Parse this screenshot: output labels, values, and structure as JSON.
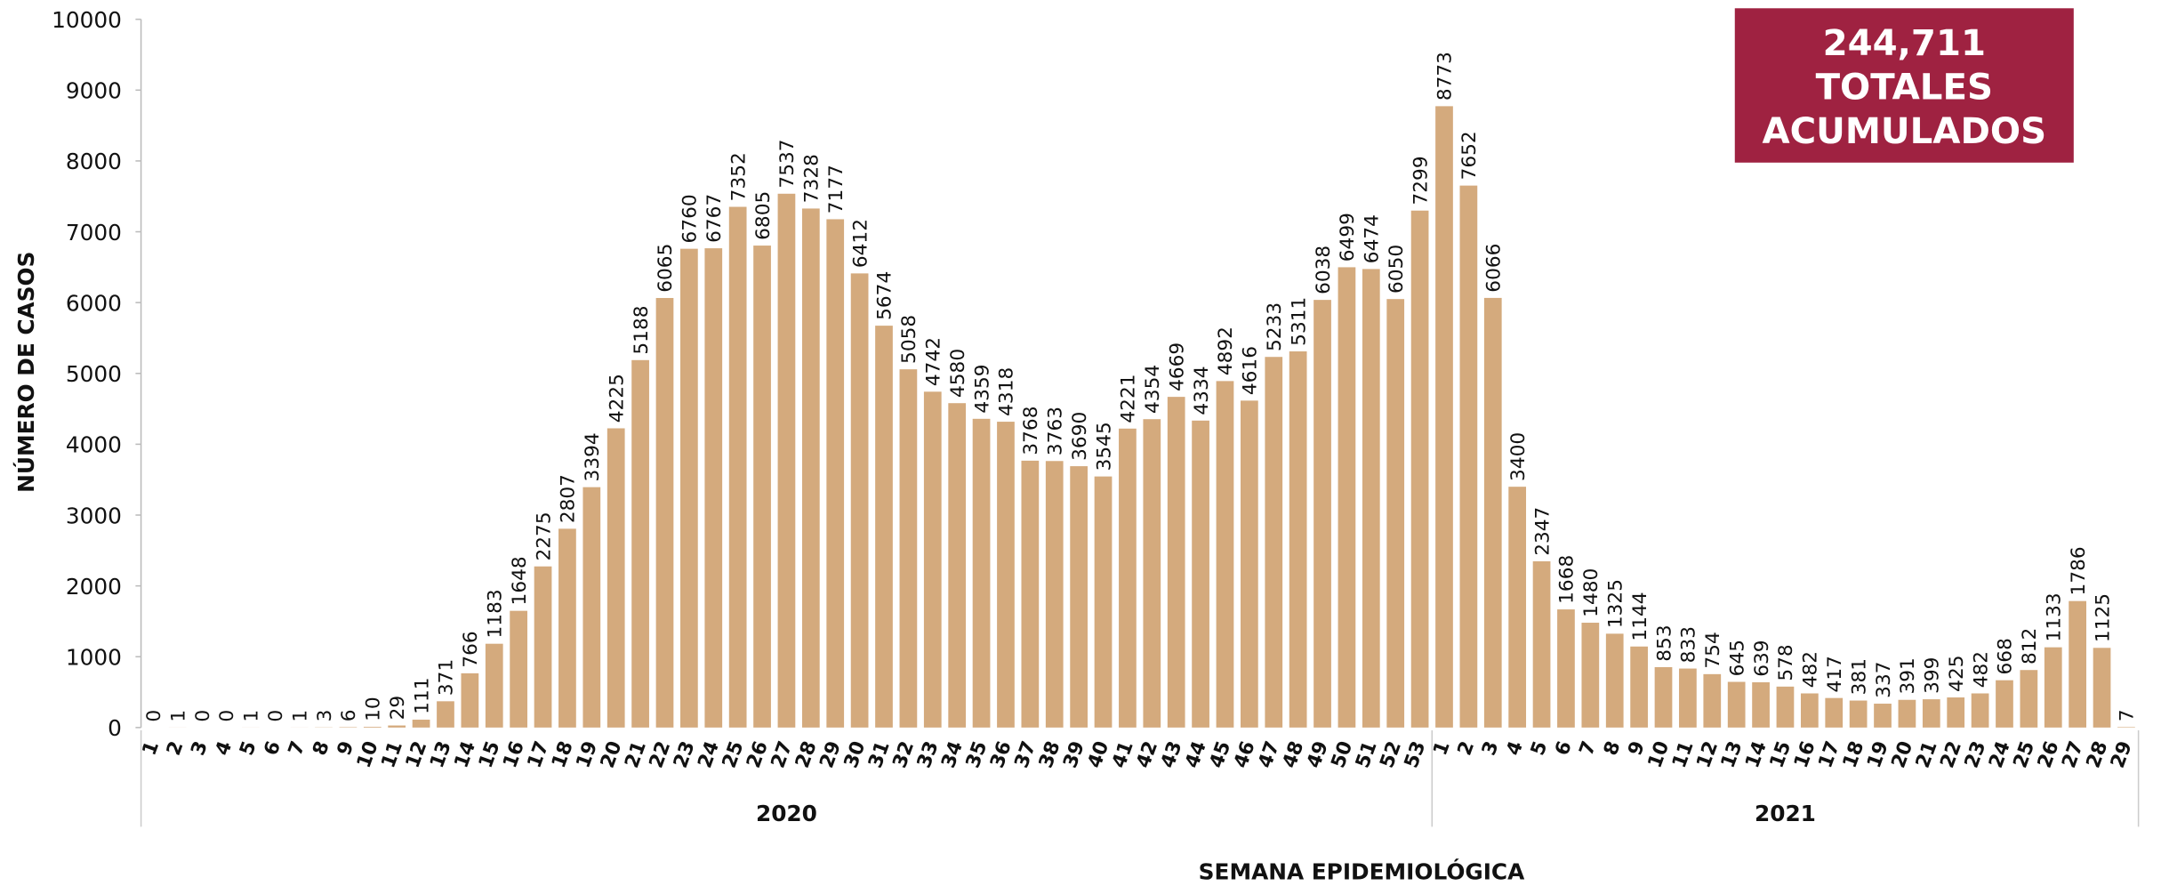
{
  "chart_data": {
    "type": "bar",
    "color": "#d4aa7d",
    "y_label": "NÚMERO DE CASOS",
    "x_label": "SEMANA EPIDEMIOLÓGICA",
    "box": [
      "244,711",
      "TOTALES",
      "ACUMULADOS"
    ],
    "box_color": "#9f2241",
    "ylim": [
      0,
      10000
    ],
    "yticks": [
      0,
      1000,
      2000,
      3000,
      4000,
      5000,
      6000,
      7000,
      8000,
      9000,
      10000
    ],
    "groups": [
      {
        "name": "2020",
        "categories": [
          "1",
          "2",
          "3",
          "4",
          "5",
          "6",
          "7",
          "8",
          "9",
          "10",
          "11",
          "12",
          "13",
          "14",
          "15",
          "16",
          "17",
          "18",
          "19",
          "20",
          "21",
          "22",
          "23",
          "24",
          "25",
          "26",
          "27",
          "28",
          "29",
          "30",
          "31",
          "32",
          "33",
          "34",
          "35",
          "36",
          "37",
          "38",
          "39",
          "40",
          "41",
          "42",
          "43",
          "44",
          "45",
          "46",
          "47",
          "48",
          "49",
          "50",
          "51",
          "52",
          "53"
        ],
        "values": [
          0,
          1,
          0,
          0,
          1,
          0,
          1,
          3,
          6,
          10,
          29,
          111,
          371,
          766,
          1183,
          1648,
          2275,
          2807,
          3394,
          4225,
          5188,
          6065,
          6760,
          6767,
          7352,
          6805,
          7537,
          7328,
          7177,
          6412,
          5674,
          5058,
          4742,
          4580,
          4359,
          4318,
          3768,
          3763,
          3690,
          3545,
          4221,
          4354,
          4669,
          4334,
          4892,
          4616,
          5233,
          5311,
          6038,
          6499,
          6474,
          6050,
          7299
        ]
      },
      {
        "name": "2021",
        "categories": [
          "1",
          "2",
          "3",
          "4",
          "5",
          "6",
          "7",
          "8",
          "9",
          "10",
          "11",
          "12",
          "13",
          "14",
          "15",
          "16",
          "17",
          "18",
          "19",
          "20",
          "21",
          "22",
          "23",
          "24",
          "25",
          "26",
          "27",
          "28",
          "29"
        ],
        "values": [
          8773,
          7652,
          6066,
          3400,
          2347,
          1668,
          1480,
          1325,
          1144,
          853,
          833,
          754,
          645,
          639,
          578,
          482,
          417,
          381,
          337,
          391,
          399,
          425,
          482,
          668,
          812,
          1133,
          1786,
          1125,
          7
        ]
      }
    ]
  }
}
